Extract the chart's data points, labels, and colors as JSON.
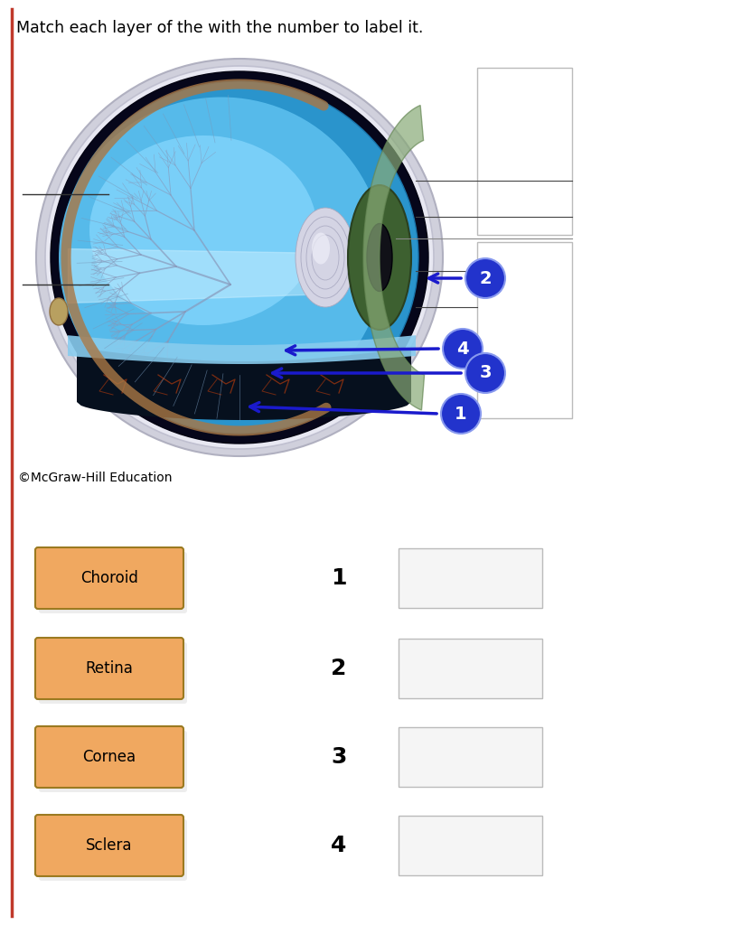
{
  "title": "Match each layer of the with the number to label it.",
  "title_fontsize": 12.5,
  "background_color": "#ffffff",
  "left_border_color": "#c0392b",
  "copyright_text": "©McGraw-Hill Education",
  "copyright_fontsize": 10,
  "label_items": [
    {
      "label": "Choroid",
      "number": "1"
    },
    {
      "label": "Retina",
      "number": "2"
    },
    {
      "label": "Cornea",
      "number": "3"
    },
    {
      "label": "Sclera",
      "number": "4"
    }
  ],
  "box_color": "#f0a860",
  "box_edge_color": "#9B7A20",
  "box_text_color": "#000000",
  "number_color": "#000000",
  "answer_box_facecolor": "#f5f5f5",
  "answer_box_edgecolor": "#bbbbbb",
  "circle_color": "#2233cc",
  "circle_edge_color": "#1122aa",
  "arrow_color": "#1a1acc",
  "right_panel_facecolor": "#ffffff",
  "right_panel_edgecolor": "#bbbbbb",
  "label_line_color": "#333333",
  "eye_sclera_outer": "#ccccd8",
  "eye_sclera_inner": "#dddde8",
  "eye_choroid": "#050518",
  "eye_retina_bg": "#2288bb",
  "eye_vitreous": "#88ccee",
  "eye_vitreous2": "#aaddff",
  "eye_ciliary_muscle": "#7799cc",
  "eye_lens": "#d0d0e0",
  "eye_iris": "#446633",
  "eye_cornea": "#88aa77",
  "eye_brown_ring": "#aa7744",
  "eye_bottom_dark": "#08101e",
  "eye_nerve_color": "#8899bb"
}
